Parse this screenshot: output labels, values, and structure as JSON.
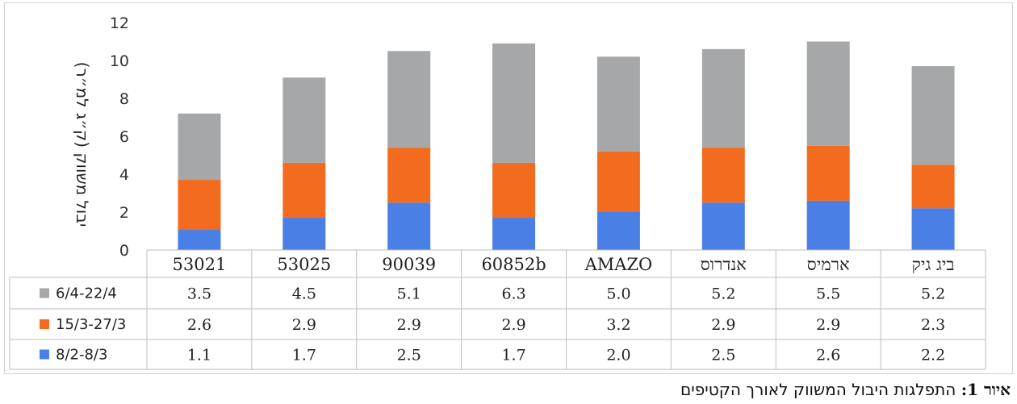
{
  "chart_data": {
    "type": "bar",
    "stacked": true,
    "categories": [
      "53021",
      "53025",
      "90039",
      "60852b",
      "AMAZO",
      "אנדרוס",
      "ארמיס",
      "ביג גיק"
    ],
    "series": [
      {
        "name": "8/2-8/3",
        "color": "#4a7fe6",
        "values": [
          1.1,
          1.7,
          2.5,
          1.7,
          2.0,
          2.5,
          2.6,
          2.2
        ]
      },
      {
        "name": "15/3-27/3",
        "color": "#f36b1f",
        "values": [
          2.6,
          2.9,
          2.9,
          2.9,
          3.2,
          2.9,
          2.9,
          2.3
        ]
      },
      {
        "name": "6/4-22/4",
        "color": "#a6a7a8",
        "values": [
          3.5,
          4.5,
          5.1,
          6.3,
          5.0,
          5.2,
          5.5,
          5.2
        ]
      }
    ],
    "table_rows": [
      {
        "legend": "6/4-22/4",
        "values": [
          "3.5",
          "4.5",
          "5.1",
          "6.3",
          "5.0",
          "5.2",
          "5.5",
          "5.2"
        ]
      },
      {
        "legend": "15/3-27/3",
        "values": [
          "2.6",
          "2.9",
          "2.9",
          "2.9",
          "3.2",
          "2.9",
          "2.9",
          "2.3"
        ]
      },
      {
        "legend": "8/2-8/3",
        "values": [
          "1.1",
          "1.7",
          "2.5",
          "1.7",
          "2.0",
          "2.5",
          "2.6",
          "2.2"
        ]
      }
    ],
    "ylabel": "יבול משווק (ק״ג למ״ר)",
    "ylim": [
      0,
      12
    ],
    "yticks": [
      0,
      2,
      4,
      6,
      8,
      10,
      12
    ],
    "legend_placement": "data-table-left",
    "grid": false
  },
  "caption": {
    "bold": "איור 1:",
    "text": " התפלגות היבול המשווק לאורך הקטיפים"
  }
}
